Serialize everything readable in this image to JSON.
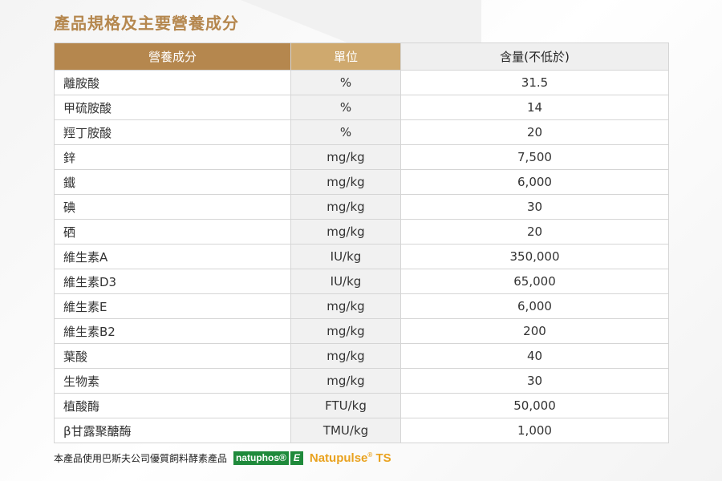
{
  "title": "產品規格及主要營養成分",
  "table": {
    "headers": [
      "營養成分",
      "單位",
      "含量(不低於)"
    ],
    "rows": [
      {
        "name": "離胺酸",
        "unit": "%",
        "value": "31.5"
      },
      {
        "name": "甲硫胺酸",
        "unit": "%",
        "value": "14"
      },
      {
        "name": "羥丁胺酸",
        "unit": "%",
        "value": "20"
      },
      {
        "name": "鋅",
        "unit": "mg/kg",
        "value": "7,500"
      },
      {
        "name": "鐵",
        "unit": "mg/kg",
        "value": "6,000"
      },
      {
        "name": "碘",
        "unit": "mg/kg",
        "value": "30"
      },
      {
        "name": "硒",
        "unit": "mg/kg",
        "value": "20"
      },
      {
        "name": "維生素A",
        "unit": "IU/kg",
        "value": "350,000"
      },
      {
        "name": "維生素D3",
        "unit": "IU/kg",
        "value": "65,000"
      },
      {
        "name": "維生素E",
        "unit": "mg/kg",
        "value": "6,000"
      },
      {
        "name": "維生素B2",
        "unit": "mg/kg",
        "value": "200"
      },
      {
        "name": "葉酸",
        "unit": "mg/kg",
        "value": "40"
      },
      {
        "name": "生物素",
        "unit": "mg/kg",
        "value": "30"
      },
      {
        "name": "植酸酶",
        "unit": "FTU/kg",
        "value": "50,000"
      },
      {
        "name": "β甘露聚醣酶",
        "unit": "TMU/kg",
        "value": "1,000"
      }
    ]
  },
  "footer": {
    "text": "本產品使用巴斯夫公司優質飼料酵素產品",
    "logo1": "natuphos®",
    "logo1_suffix": "E",
    "logo2": "Natupulse",
    "logo2_reg": "®",
    "logo2_suffix": "TS"
  },
  "colors": {
    "accent": "#b5874e",
    "accent_light": "#cfa96e",
    "natuphos_green": "#1f8a3b",
    "natupulse_orange": "#e9a21f"
  }
}
